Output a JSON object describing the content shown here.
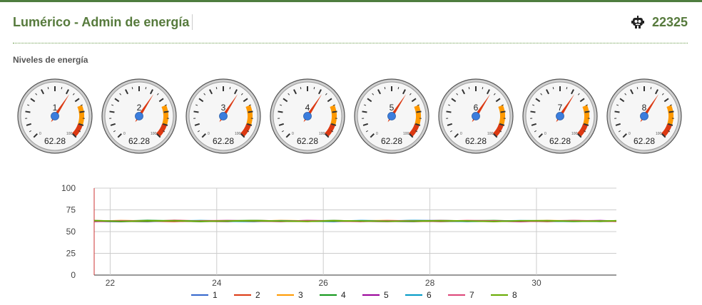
{
  "header": {
    "title": "Lumérico - Admin de energía",
    "counter": "22325",
    "counter_icon": "robot-icon"
  },
  "section": {
    "label": "Niveles de energía"
  },
  "gauges": [
    {
      "label": "1",
      "value": "62.28",
      "level": 62.28
    },
    {
      "label": "2",
      "value": "62.28",
      "level": 62.28
    },
    {
      "label": "3",
      "value": "62.28",
      "level": 62.28
    },
    {
      "label": "4",
      "value": "62.28",
      "level": 62.28
    },
    {
      "label": "5",
      "value": "62.28",
      "level": 62.28
    },
    {
      "label": "6",
      "value": "62.28",
      "level": 62.28
    },
    {
      "label": "7",
      "value": "62.28",
      "level": 62.28
    },
    {
      "label": "8",
      "value": "62.28",
      "level": 62.28
    }
  ],
  "gauge_scale": {
    "min": "0",
    "max": "100"
  },
  "colors": {
    "accent": "#567a3c",
    "needle": "#dc3912",
    "hub": "#3b7ddd",
    "yellow_band": "#ff9900",
    "red_band": "#dc3912"
  },
  "chart_data": {
    "type": "line",
    "x": [
      21.7,
      22.2,
      22.7,
      23.2,
      23.7,
      24.2,
      24.7,
      25.2,
      25.7,
      26.2,
      26.7,
      27.2,
      27.7,
      28.2,
      28.7,
      29.2,
      29.7,
      30.2,
      30.7,
      31.2,
      31.5
    ],
    "xlim": [
      21.7,
      31.5
    ],
    "ylim": [
      0,
      100
    ],
    "xticks": [
      "22",
      "24",
      "26",
      "28",
      "30"
    ],
    "xtick_values": [
      22,
      24,
      26,
      28,
      30
    ],
    "yticks": [
      "0",
      "25",
      "50",
      "75",
      "100"
    ],
    "ytick_values": [
      0,
      25,
      50,
      75,
      100
    ],
    "grid": true,
    "legend": "bottom",
    "series": [
      {
        "name": "1",
        "color": "#3366cc",
        "values": [
          62,
          61.5,
          62.5,
          62,
          61.8,
          62.6,
          61.9,
          62.3,
          62.1,
          61.7,
          62.4,
          62,
          61.6,
          62.5,
          62.1,
          61.8,
          62.3,
          62,
          61.9,
          62.2,
          62
        ]
      },
      {
        "name": "2",
        "color": "#dc3912",
        "values": [
          62.5,
          62,
          61.6,
          62.8,
          62.1,
          61.7,
          62.6,
          62.2,
          61.8,
          62.5,
          62,
          61.9,
          62.6,
          62.1,
          61.8,
          62.4,
          62.2,
          61.7,
          62.5,
          62,
          62.2
        ]
      },
      {
        "name": "3",
        "color": "#ff9900",
        "values": [
          61.8,
          62.6,
          62.1,
          61.6,
          62.4,
          62.1,
          61.8,
          62.7,
          62.2,
          61.9,
          62.3,
          62.6,
          61.9,
          62,
          62.5,
          61.8,
          62.1,
          62.6,
          62.2,
          61.9,
          62.3
        ]
      },
      {
        "name": "4",
        "color": "#109618",
        "values": [
          62.2,
          61.9,
          62.8,
          62.2,
          61.7,
          62.3,
          62.7,
          61.9,
          62.1,
          62.6,
          61.8,
          62.2,
          62.4,
          61.7,
          62.3,
          62.6,
          61.9,
          62.1,
          62.5,
          61.8,
          62.4
        ]
      },
      {
        "name": "5",
        "color": "#990099",
        "values": [
          61.7,
          62.3,
          62,
          62.5,
          62.2,
          61.9,
          62.4,
          61.7,
          62.6,
          62.1,
          62,
          61.7,
          62.3,
          62.6,
          61.9,
          62.2,
          61.6,
          62.4,
          62,
          62.6,
          61.9
        ]
      },
      {
        "name": "6",
        "color": "#0099c6",
        "values": [
          62.4,
          62.1,
          61.8,
          62.1,
          62.6,
          62,
          61.7,
          62.4,
          62.2,
          61.8,
          62.6,
          62.1,
          62.7,
          62.3,
          61.8,
          62,
          62.5,
          62.2,
          61.7,
          62.3,
          62.1
        ]
      },
      {
        "name": "7",
        "color": "#dd4477",
        "values": [
          62,
          62.4,
          62.2,
          61.8,
          62.3,
          62.6,
          62.1,
          61.9,
          62.5,
          62.2,
          61.7,
          62.5,
          62.2,
          61.9,
          62.6,
          62.3,
          61.8,
          62.1,
          62.6,
          62.2,
          61.8
        ]
      },
      {
        "name": "8",
        "color": "#66aa00",
        "values": [
          62.6,
          61.8,
          62.3,
          62.4,
          61.9,
          62.2,
          62.5,
          62.1,
          61.8,
          62.4,
          62.2,
          61.9,
          62.1,
          62.5,
          62.2,
          61.7,
          62.4,
          62.5,
          61.9,
          62.1,
          62.4
        ]
      }
    ]
  }
}
